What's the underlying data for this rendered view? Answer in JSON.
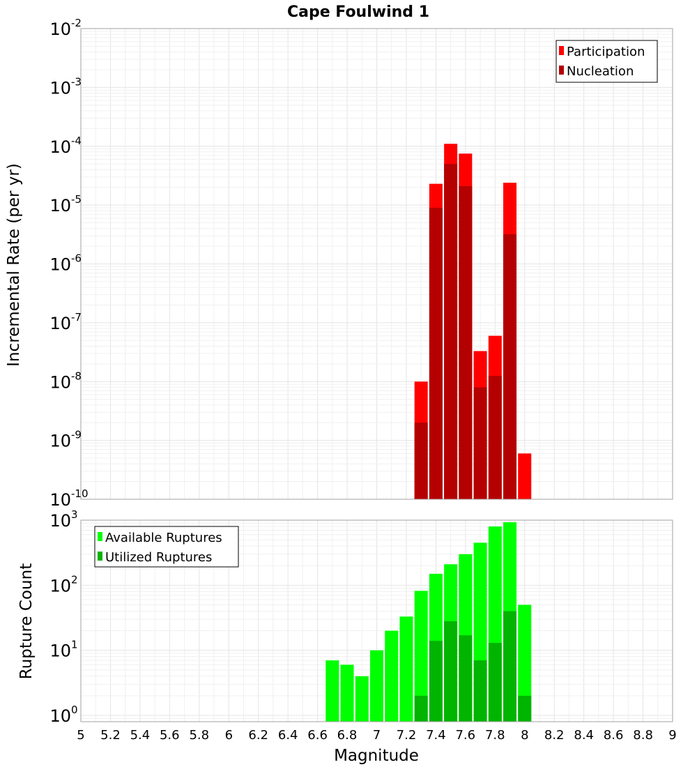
{
  "chart_data": [
    {
      "type": "bar",
      "title": "Cape Foulwind 1",
      "xlabel": "",
      "ylabel": "Incremental Rate (per yr)",
      "yscale": "log",
      "xlim": [
        5,
        9
      ],
      "ylim": [
        1e-10,
        0.01
      ],
      "grid": true,
      "legend": "top-right",
      "x": [
        7.3,
        7.4,
        7.5,
        7.6,
        7.7,
        7.8,
        7.9,
        8.0
      ],
      "series": [
        {
          "name": "Participation",
          "color": "#ff0000",
          "values": [
            1e-08,
            2.3e-05,
            0.00011,
            7.5e-05,
            3.3e-08,
            6e-08,
            2.4e-05,
            6e-10
          ]
        },
        {
          "name": "Nucleation",
          "color": "#b40000",
          "values": [
            2e-09,
            9e-06,
            5e-05,
            2.1e-05,
            8e-09,
            1.25e-08,
            3.2e-06,
            null
          ]
        }
      ],
      "yticks": [
        {
          "base": "10",
          "exp": "-2"
        },
        {
          "base": "10",
          "exp": "-3"
        },
        {
          "base": "10",
          "exp": "-4"
        },
        {
          "base": "10",
          "exp": "-5"
        },
        {
          "base": "10",
          "exp": "-6"
        },
        {
          "base": "10",
          "exp": "-7"
        },
        {
          "base": "10",
          "exp": "-8"
        },
        {
          "base": "10",
          "exp": "-9"
        },
        {
          "base": "10",
          "exp": "-10"
        }
      ]
    },
    {
      "type": "bar",
      "xlabel": "Magnitude",
      "ylabel": "Rupture Count",
      "yscale": "log",
      "xlim": [
        5,
        9
      ],
      "ylim": [
        0.8,
        1000
      ],
      "grid": true,
      "legend": "top-left",
      "x": [
        6.7,
        6.8,
        6.9,
        7.0,
        7.1,
        7.2,
        7.3,
        7.4,
        7.5,
        7.6,
        7.7,
        7.8,
        7.9,
        8.0
      ],
      "series": [
        {
          "name": "Available Ruptures",
          "color": "#00ff00",
          "values": [
            7,
            6,
            4,
            10,
            20,
            33,
            82,
            150,
            210,
            300,
            450,
            800,
            930,
            50
          ]
        },
        {
          "name": "Utilized Ruptures",
          "color": "#00b400",
          "values": [
            null,
            null,
            null,
            null,
            null,
            null,
            2,
            14,
            28,
            17,
            7,
            13,
            40,
            2
          ]
        }
      ],
      "yticks": [
        {
          "base": "10",
          "exp": "3"
        },
        {
          "base": "10",
          "exp": "2"
        },
        {
          "base": "10",
          "exp": "1"
        },
        {
          "base": "10",
          "exp": "0"
        }
      ],
      "xticks": [
        "5",
        "5.2",
        "5.4",
        "5.6",
        "5.8",
        "6",
        "6.2",
        "6.4",
        "6.6",
        "6.8",
        "7",
        "7.2",
        "7.4",
        "7.6",
        "7.8",
        "8",
        "8.2",
        "8.4",
        "8.6",
        "8.8",
        "9"
      ]
    }
  ]
}
